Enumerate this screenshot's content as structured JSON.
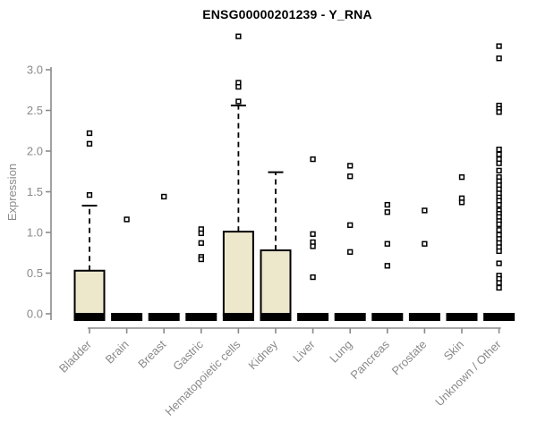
{
  "chart_data": {
    "type": "boxplot",
    "title": "ENSG00000201239 - Y_RNA",
    "ylabel": "Expression",
    "xlabel": "",
    "ylim": [
      0,
      3.45
    ],
    "ytick_labels": [
      "0.0",
      "0.5",
      "1.0",
      "1.5",
      "2.0",
      "2.5",
      "3.0"
    ],
    "grid": "off",
    "categories": [
      "Bladder",
      "Brain",
      "Breast",
      "Gastric",
      "Hematopoietic cells",
      "Kidney",
      "Liver",
      "Lung",
      "Pancreas",
      "Prostate",
      "Skin",
      "Unknown / Other"
    ],
    "series": [
      {
        "name": "Bladder",
        "whisker_low": 0,
        "q1": 0,
        "median": 0,
        "q3": 0.53,
        "whisker_high": 1.33,
        "outliers": [
          2.22,
          2.09,
          1.46
        ]
      },
      {
        "name": "Brain",
        "whisker_low": 0,
        "q1": 0,
        "median": 0,
        "q3": 0,
        "whisker_high": 0,
        "outliers": [
          1.16
        ]
      },
      {
        "name": "Breast",
        "whisker_low": 0,
        "q1": 0,
        "median": 0,
        "q3": 0,
        "whisker_high": 0,
        "outliers": [
          1.44
        ]
      },
      {
        "name": "Gastric",
        "whisker_low": 0,
        "q1": 0,
        "median": 0,
        "q3": 0,
        "whisker_high": 0,
        "outliers": [
          1.04,
          0.99,
          0.87,
          0.7,
          0.67
        ]
      },
      {
        "name": "Hematopoietic cells",
        "whisker_low": 0,
        "q1": 0,
        "median": 0,
        "q3": 1.01,
        "whisker_high": 2.56,
        "outliers": [
          3.41,
          2.84,
          2.79,
          2.61
        ]
      },
      {
        "name": "Kidney",
        "whisker_low": 0,
        "q1": 0,
        "median": 0,
        "q3": 0.78,
        "whisker_high": 1.74,
        "outliers": []
      },
      {
        "name": "Liver",
        "whisker_low": 0,
        "q1": 0,
        "median": 0,
        "q3": 0,
        "whisker_high": 0,
        "outliers": [
          1.9,
          0.98,
          0.88,
          0.83,
          0.45
        ]
      },
      {
        "name": "Lung",
        "whisker_low": 0,
        "q1": 0,
        "median": 0,
        "q3": 0,
        "whisker_high": 0,
        "outliers": [
          1.82,
          1.69,
          1.09,
          0.76
        ]
      },
      {
        "name": "Pancreas",
        "whisker_low": 0,
        "q1": 0,
        "median": 0,
        "q3": 0,
        "whisker_high": 0,
        "outliers": [
          1.34,
          1.25,
          0.86,
          0.59
        ]
      },
      {
        "name": "Prostate",
        "whisker_low": 0,
        "q1": 0,
        "median": 0,
        "q3": 0,
        "whisker_high": 0,
        "outliers": [
          1.27,
          0.86
        ]
      },
      {
        "name": "Skin",
        "whisker_low": 0,
        "q1": 0,
        "median": 0,
        "q3": 0,
        "whisker_high": 0,
        "outliers": [
          1.68,
          1.42,
          1.37
        ]
      },
      {
        "name": "Unknown / Other",
        "whisker_low": 0,
        "q1": 0,
        "median": 0,
        "q3": 0,
        "whisker_high": 0,
        "outliers": [
          3.29,
          3.14,
          2.56,
          2.52,
          2.48,
          2.02,
          1.96,
          1.9,
          1.85,
          1.76,
          1.68,
          1.63,
          1.58,
          1.53,
          1.48,
          1.43,
          1.39,
          1.34,
          1.27,
          1.23,
          1.19,
          1.14,
          1.1,
          1.03,
          0.97,
          0.92,
          0.87,
          0.82,
          0.77,
          0.62,
          0.47,
          0.43,
          0.38,
          0.32
        ]
      }
    ],
    "legend": "none",
    "colors": {
      "box_fill": "#EDE8CC",
      "box_stroke": "#000000",
      "outlier_stroke": "#000000",
      "axis": "#8a8a8a",
      "tick_label": "#8a8a8a",
      "title": "#000000"
    }
  }
}
